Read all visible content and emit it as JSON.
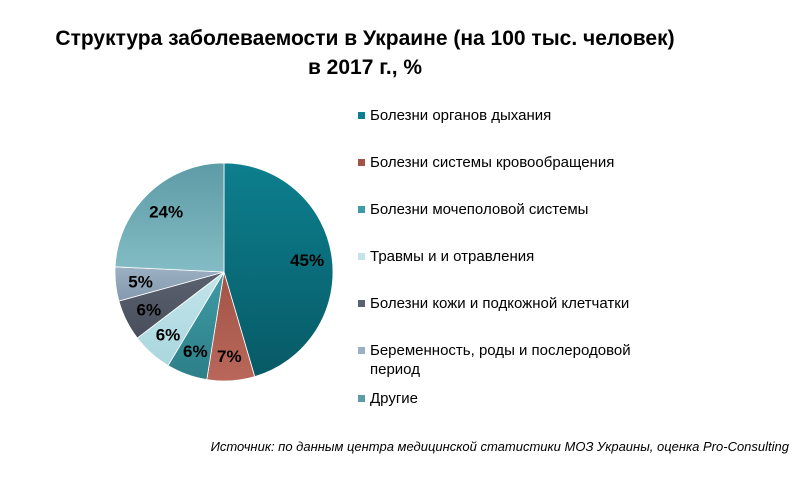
{
  "chart_data": {
    "type": "pie",
    "title_lines": [
      "Структура  заболеваемости  в Украине (на 100 тыс. человек)",
      "в 2017 г., %"
    ],
    "start_angle_deg": 0,
    "direction": "clockwise",
    "legend_position": "right",
    "slices": [
      {
        "label": "Болезни органов дыхания",
        "value": 45,
        "value_label": "45%",
        "color": "#0d7f8e",
        "gradient_color": "#075a66"
      },
      {
        "label": "Болезни системы кровообращения",
        "value": 7,
        "value_label": "7%",
        "color": "#a35447",
        "gradient_color": "#b8675a"
      },
      {
        "label": "Болезни мочеполовой системы",
        "value": 6,
        "value_label": "6%",
        "color": "#3f9ba5",
        "gradient_color": "#2d7f88"
      },
      {
        "label": "Травмы  и и отравления",
        "value": 6,
        "value_label": "6%",
        "color": "#c3e4ea",
        "gradient_color": "#aad7df"
      },
      {
        "label": "Болезни кожи и подкожной клетчатки",
        "value": 6,
        "value_label": "6%",
        "color": "#5a6170",
        "gradient_color": "#484e5b"
      },
      {
        "label": "Беременность, роды и послеродовой период",
        "value": 5,
        "value_label": "5%",
        "color": "#9cb0c3",
        "gradient_color": "#8499ad"
      },
      {
        "label": "Другие",
        "value": 24,
        "value_label": "24%",
        "color": "#5d9ba6",
        "gradient_color": "#83bcc4"
      }
    ]
  },
  "source": "Источник: по данным центра медицинской статистики МОЗ Украины, оценка Pro-Consulting"
}
